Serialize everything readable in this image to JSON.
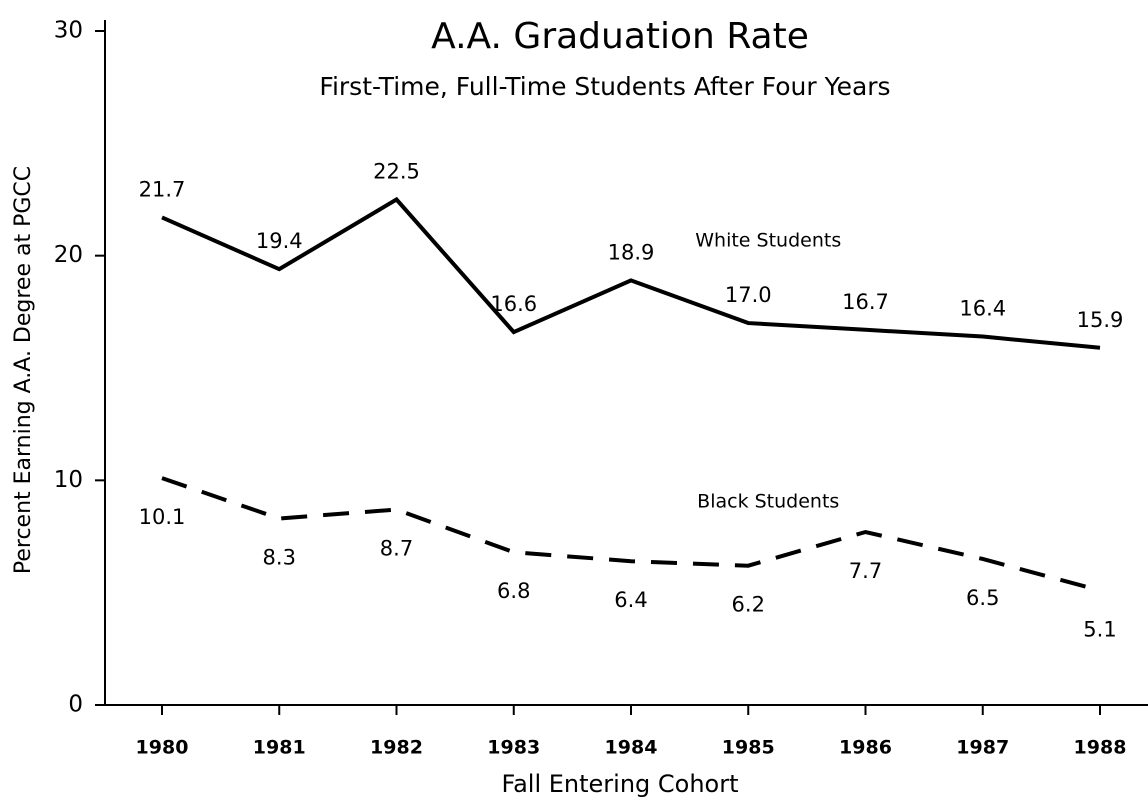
{
  "chart_data": {
    "type": "line",
    "title": "A.A. Graduation Rate",
    "subtitle": "First-Time, Full-Time Students After Four Years",
    "x_label": "Fall Entering Cohort",
    "y_label": "Percent Earning A.A. Degree at PGCC",
    "categories": [
      "1980",
      "1981",
      "1982",
      "1983",
      "1984",
      "1985",
      "1986",
      "1987",
      "1988"
    ],
    "series": [
      {
        "name": "White Students",
        "color": "#000000",
        "dashed": false,
        "values": [
          21.7,
          19.4,
          22.5,
          16.6,
          18.9,
          17.0,
          16.7,
          16.4,
          15.9
        ],
        "value_labels": [
          "21.7",
          "19.4",
          "22.5",
          "16.6",
          "18.9",
          "17.0",
          "16.7",
          "16.4",
          "15.9"
        ]
      },
      {
        "name": "Black Students",
        "color": "#000000",
        "dashed": true,
        "values": [
          10.1,
          8.3,
          8.7,
          6.8,
          6.4,
          6.2,
          7.7,
          6.5,
          5.1
        ]
      }
    ],
    "ylim": [
      0,
      30
    ],
    "yticks": [
      0,
      10,
      20,
      30
    ],
    "grid": false
  }
}
